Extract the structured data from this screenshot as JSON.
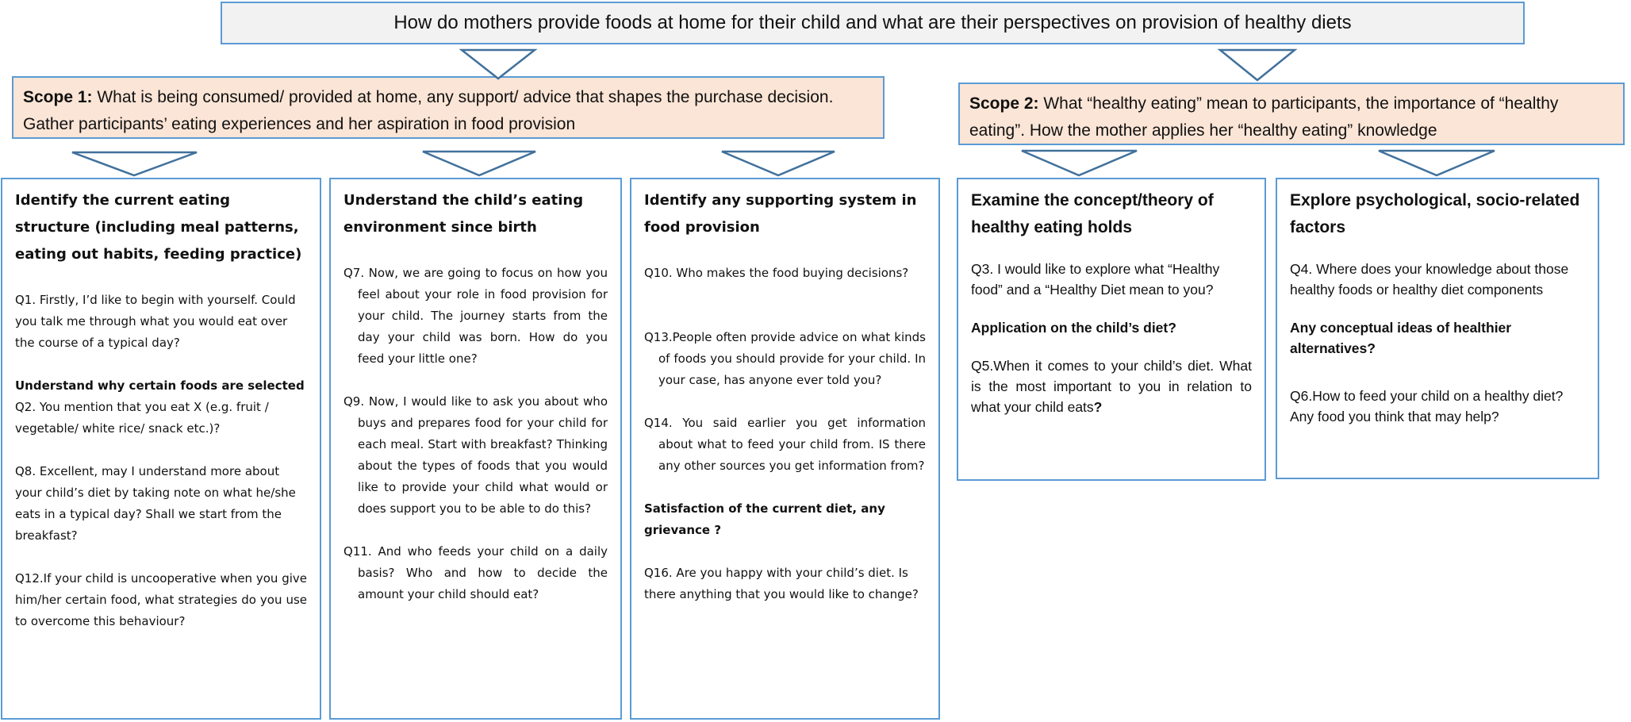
{
  "title": "How do mothers provide foods at home for their child and what are their perspectives on provision of healthy diets",
  "scopes": [
    {
      "label": "Scope 1:",
      "text": " What is being consumed/ provided at home, any support/ advice that shapes the purchase decision. Gather participants’ eating experiences and her aspiration in food provision"
    },
    {
      "label": "Scope 2:",
      "text": " What “healthy eating” mean to participants, the importance of “healthy eating”. How the mother applies her “healthy eating” knowledge"
    }
  ],
  "boxes": [
    {
      "heading": "Identify the current eating structure (including  meal patterns, eating out habits, feeding practice)",
      "q1": "Q1. Firstly, I’d like to begin with yourself. Could you talk me through what you would eat over the course of a typical day?",
      "sub1": "Understand why certain foods are selected",
      "q2": "Q2. You mention that you eat X (e.g. fruit / vegetable/ white rice/ snack etc.)?",
      "q8": "Q8. Excellent, may I understand more about your child’s diet by taking note on what he/she eats in a typical day?  Shall we start from the breakfast?",
      "q12": "Q12.If your child is uncooperative when you give him/her certain food, what strategies do you use to overcome this behaviour?"
    },
    {
      "heading": "Understand the child’s eating environment since birth",
      "q7": "Q7. Now, we are going to focus on how you feel about your role in food provision for your child.  The journey starts from the day your child was born.  How do you feed your little one?",
      "q9": "Q9. Now, I would like to ask you about who buys and prepares food for your child for each meal.  Start with breakfast?   Thinking about the types of foods that you would like to provide your child what would or does support you to be able to do this?",
      "q11": "Q11. And who feeds your child on a daily basis? Who and how to decide the amount your child should eat?"
    },
    {
      "heading": "Identify any supporting system in food provision",
      "q10": "Q10. Who makes the food buying decisions?",
      "q13": "Q13.People often provide advice on what kinds of foods you should provide for your child.  In your case, has anyone ever told you?",
      "q14": "Q14. You said earlier you get information about what to feed your child from. IS there any other sources you get information from?",
      "sub1": "Satisfaction of the current diet, any grievance ?",
      "q16": "Q16. Are you happy with your child’s diet.  Is there anything that you would like to change?"
    },
    {
      "heading": "Examine the concept/theory  of healthy eating holds",
      "q3": "Q3. I would like to explore what “Healthy food” and a “Healthy Diet mean to you?",
      "sub1": "Application on the child’s diet?",
      "q5": "Q5.When it comes to your child’s diet. What is the most important to you in relation to what your child eats",
      "q5_end": "?"
    },
    {
      "heading": "Explore psychological, socio-related factors",
      "q4": "Q4. Where does your knowledge about those healthy foods or healthy diet components",
      "sub1": "Any conceptual ideas of healthier alternatives?",
      "q6": "Q6.How to feed your child on a healthy diet?     Any food you think that may help?"
    }
  ],
  "colors": {
    "border": "#5b9bd5",
    "scope_fill": "#fbe5d6",
    "title_fill": "#f2f2f2",
    "arrow_stroke": "#41719c"
  }
}
